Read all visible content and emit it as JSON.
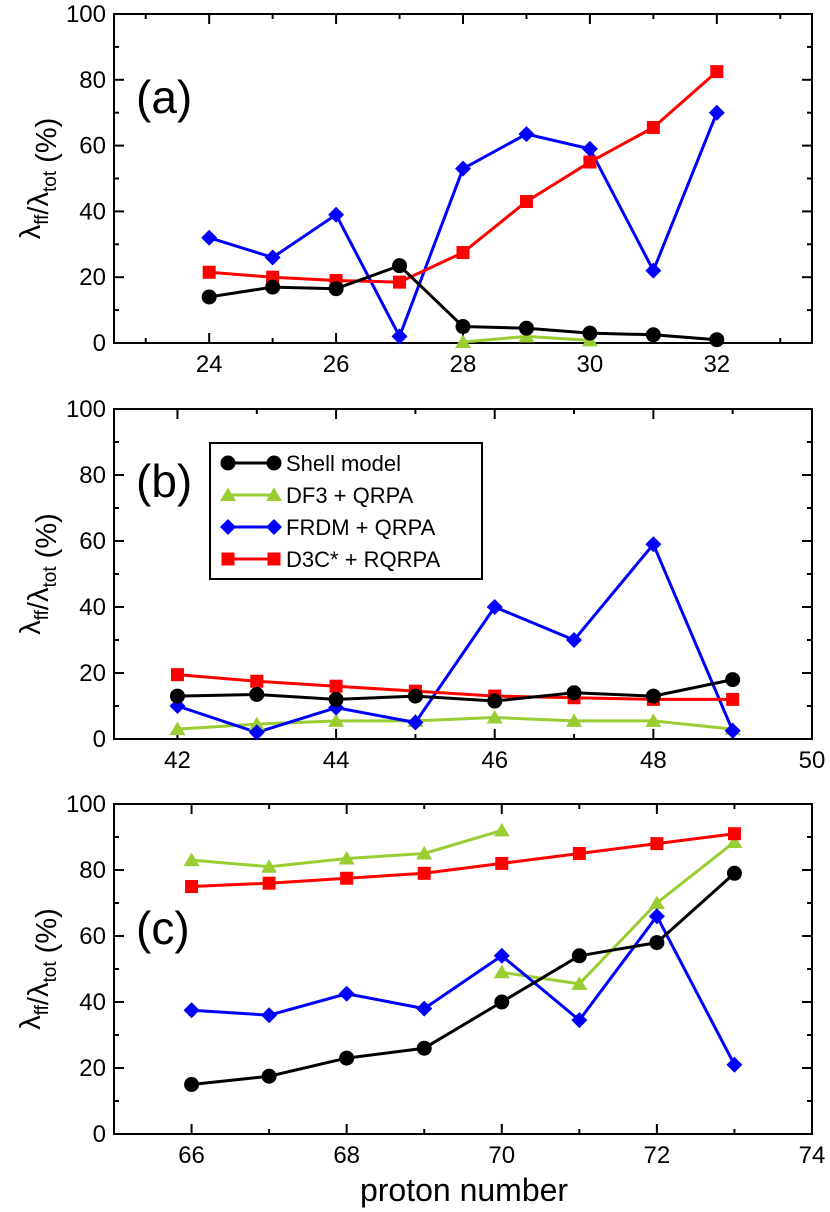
{
  "xlabel": "proton number",
  "legend": {
    "series": [
      "Shell model",
      "DF3 + QRPA",
      "FRDM + QRPA",
      "D3C* + RQRPA"
    ]
  },
  "colors": {
    "Shell model": "#000000",
    "DF3 + QRPA": "#9acd32",
    "FRDM + QRPA": "#0000ff",
    "D3C* + RQRPA": "#ff0000"
  },
  "markers": {
    "Shell model": "circle",
    "DF3 + QRPA": "triangle",
    "FRDM + QRPA": "diamond",
    "D3C* + RQRPA": "square"
  },
  "chart_data": [
    {
      "type": "line",
      "panel": "(a)",
      "ylabel": {
        "main": "λ",
        "sub1": "ff",
        "slash": "/λ",
        "sub2": "tot",
        "unit": " (%)"
      },
      "xlim": [
        22.5,
        33.5
      ],
      "ylim": [
        0,
        100
      ],
      "xticks": [
        24,
        26,
        28,
        30,
        32
      ],
      "yticks": [
        0,
        20,
        40,
        60,
        80,
        100
      ],
      "series": [
        {
          "name": "Shell model",
          "x": [
            24,
            25,
            26,
            27,
            28,
            29,
            30,
            31,
            32
          ],
          "y": [
            14,
            17,
            16.5,
            23.5,
            5,
            4.5,
            3,
            2.5,
            1
          ]
        },
        {
          "name": "DF3 + QRPA",
          "x": [
            28,
            29,
            30
          ],
          "y": [
            0.3,
            2,
            0.8
          ]
        },
        {
          "name": "FRDM + QRPA",
          "x": [
            24,
            25,
            26,
            27,
            28,
            29,
            30,
            31,
            32
          ],
          "y": [
            32,
            26,
            39,
            2,
            53,
            63.5,
            59,
            22,
            70
          ]
        },
        {
          "name": "D3C* + RQRPA",
          "x": [
            24,
            25,
            26,
            27,
            28,
            29,
            30,
            31,
            32
          ],
          "y": [
            21.5,
            20,
            19,
            18.5,
            27.5,
            43,
            55,
            65.5,
            82.5
          ]
        }
      ]
    },
    {
      "type": "line",
      "panel": "(b)",
      "ylabel": {
        "main": "λ",
        "sub1": "ff",
        "slash": "/λ",
        "sub2": "tot",
        "unit": " (%)"
      },
      "xlim": [
        41.2,
        50
      ],
      "ylim": [
        0,
        100
      ],
      "xticks": [
        42,
        44,
        46,
        48,
        50
      ],
      "yticks": [
        0,
        20,
        40,
        60,
        80,
        100
      ],
      "series": [
        {
          "name": "Shell model",
          "x": [
            42,
            43,
            44,
            45,
            46,
            47,
            48,
            49
          ],
          "y": [
            13,
            13.5,
            12,
            13,
            11.5,
            14,
            13,
            18
          ]
        },
        {
          "name": "DF3 + QRPA",
          "x": [
            42,
            43,
            44,
            45,
            46,
            47,
            48,
            49
          ],
          "y": [
            3,
            4.5,
            5.5,
            5.5,
            6.5,
            5.5,
            5.5,
            3
          ]
        },
        {
          "name": "FRDM + QRPA",
          "x": [
            42,
            43,
            44,
            45,
            46,
            47,
            48,
            49
          ],
          "y": [
            10,
            2,
            9.5,
            5,
            40,
            30,
            59,
            2.5
          ]
        },
        {
          "name": "D3C* + RQRPA",
          "x": [
            42,
            43,
            44,
            45,
            46,
            47,
            48,
            49
          ],
          "y": [
            19.5,
            17.5,
            16,
            14.5,
            13,
            12.5,
            12,
            12
          ]
        }
      ]
    },
    {
      "type": "line",
      "panel": "(c)",
      "ylabel": {
        "main": "λ",
        "sub1": "ff",
        "slash": "/λ",
        "sub2": "tot",
        "unit": " (%)"
      },
      "xlim": [
        65,
        74
      ],
      "ylim": [
        0,
        100
      ],
      "xticks": [
        66,
        68,
        70,
        72,
        74
      ],
      "yticks": [
        0,
        20,
        40,
        60,
        80,
        100
      ],
      "series": [
        {
          "name": "Shell model",
          "x": [
            66,
            67,
            68,
            69,
            70,
            71,
            72,
            73
          ],
          "y": [
            15,
            17.5,
            23,
            26,
            40,
            54,
            58,
            79
          ]
        },
        {
          "name": "DF3 + QRPA",
          "x": [
            66,
            67,
            68,
            69,
            70
          ],
          "y": [
            83,
            81,
            83.5,
            85,
            92
          ]
        },
        {
          "name": "DF3 + QRPA",
          "x": [
            70,
            71,
            72,
            73
          ],
          "y": [
            49,
            45.5,
            70,
            88.5
          ]
        },
        {
          "name": "FRDM + QRPA",
          "x": [
            66,
            67,
            68,
            69,
            70,
            71,
            72,
            73
          ],
          "y": [
            37.5,
            36,
            42.5,
            38,
            54,
            34.5,
            66,
            21
          ]
        },
        {
          "name": "D3C* + RQRPA",
          "x": [
            66,
            67,
            68,
            69,
            70,
            71,
            72,
            73
          ],
          "y": [
            75,
            76,
            77.5,
            79,
            82,
            85,
            88,
            91
          ]
        }
      ]
    }
  ]
}
